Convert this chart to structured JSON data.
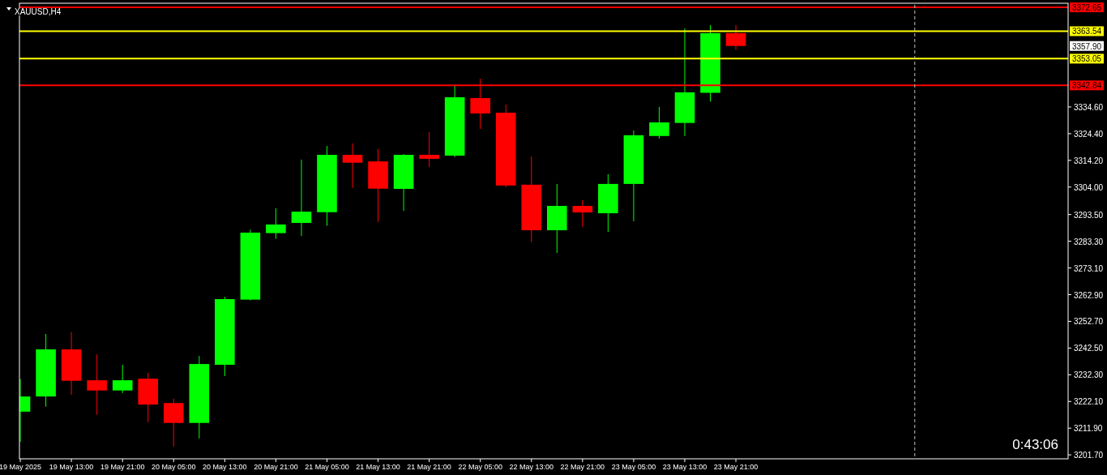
{
  "chart_data": {
    "type": "candlestick",
    "title": "XAUUSD,H4",
    "x": [
      "2025-05-19T05:00",
      "2025-05-19T09:00",
      "2025-05-19T13:00",
      "2025-05-19T17:00",
      "2025-05-19T21:00",
      "2025-05-20T01:00",
      "2025-05-20T05:00",
      "2025-05-20T09:00",
      "2025-05-20T13:00",
      "2025-05-20T17:00",
      "2025-05-20T21:00",
      "2025-05-21T01:00",
      "2025-05-21T05:00",
      "2025-05-21T09:00",
      "2025-05-21T13:00",
      "2025-05-21T17:00",
      "2025-05-21T21:00",
      "2025-05-22T01:00",
      "2025-05-22T05:00",
      "2025-05-22T09:00",
      "2025-05-22T13:00",
      "2025-05-22T17:00",
      "2025-05-22T21:00",
      "2025-05-23T01:00",
      "2025-05-23T05:00",
      "2025-05-23T09:00",
      "2025-05-23T13:00",
      "2025-05-23T17:00",
      "2025-05-23T21:00"
    ],
    "ohlc": [
      [
        3218.2,
        3230.6,
        3206.7,
        3224.0
      ],
      [
        3224.0,
        3247.9,
        3220.1,
        3242.0
      ],
      [
        3242.0,
        3248.6,
        3224.6,
        3230.0
      ],
      [
        3230.2,
        3240.1,
        3217.0,
        3226.3
      ],
      [
        3226.3,
        3236.1,
        3225.3,
        3230.2
      ],
      [
        3230.8,
        3233.0,
        3214.2,
        3220.9
      ],
      [
        3221.5,
        3223.1,
        3204.9,
        3213.9
      ],
      [
        3213.9,
        3239.5,
        3208.0,
        3236.4
      ],
      [
        3236.1,
        3262.1,
        3231.8,
        3261.2
      ],
      [
        3261.0,
        3287.7,
        3260.7,
        3286.6
      ],
      [
        3286.4,
        3295.9,
        3284.2,
        3289.7
      ],
      [
        3290.3,
        3314.5,
        3285.3,
        3294.6
      ],
      [
        3294.4,
        3319.7,
        3289.2,
        3316.3
      ],
      [
        3316.3,
        3320.7,
        3303.7,
        3313.3
      ],
      [
        3313.8,
        3318.5,
        3290.7,
        3303.4
      ],
      [
        3303.3,
        3316.6,
        3294.9,
        3316.3
      ],
      [
        3316.3,
        3325.0,
        3311.7,
        3314.8
      ],
      [
        3316.0,
        3343.0,
        3315.4,
        3338.3
      ],
      [
        3338.0,
        3345.4,
        3326.2,
        3332.1
      ],
      [
        3332.4,
        3335.5,
        3303.9,
        3304.6
      ],
      [
        3304.9,
        3315.7,
        3282.9,
        3287.5
      ],
      [
        3287.5,
        3305.2,
        3278.8,
        3296.8
      ],
      [
        3296.8,
        3299.0,
        3288.8,
        3294.3
      ],
      [
        3294.0,
        3308.9,
        3286.9,
        3305.2
      ],
      [
        3305.2,
        3325.6,
        3290.9,
        3323.8
      ],
      [
        3323.5,
        3334.6,
        3322.5,
        3328.7
      ],
      [
        3328.5,
        3364.6,
        3323.5,
        3340.2
      ],
      [
        3340.0,
        3365.9,
        3336.6,
        3362.8
      ],
      [
        3362.8,
        3365.9,
        3356.4,
        3357.9
      ]
    ],
    "colors": [
      "#00ff00",
      "#00ff00",
      "#ff0000",
      "#ff0000",
      "#00ff00",
      "#ff0000",
      "#ff0000",
      "#00ff00",
      "#00ff00",
      "#00ff00",
      "#00ff00",
      "#00ff00",
      "#00ff00",
      "#ff0000",
      "#ff0000",
      "#00ff00",
      "#ff0000",
      "#00ff00",
      "#ff0000",
      "#ff0000",
      "#ff0000",
      "#00ff00",
      "#ff0000",
      "#00ff00",
      "#00ff00",
      "#00ff00",
      "#00ff00",
      "#00ff00",
      "#ff0000"
    ],
    "xlim": [
      "2025-05-19T04:52",
      "2025-05-26T01:00"
    ],
    "ylim": [
      3200.2,
      3373.6
    ],
    "yticks": [
      {
        "value": 3201.7,
        "label": "3201.70"
      },
      {
        "value": 3211.9,
        "label": "3211.90"
      },
      {
        "value": 3222.1,
        "label": "3222.10"
      },
      {
        "value": 3232.3,
        "label": "3232.30"
      },
      {
        "value": 3242.5,
        "label": "3242.50"
      },
      {
        "value": 3252.7,
        "label": "3252.70"
      },
      {
        "value": 3262.9,
        "label": "3262.90"
      },
      {
        "value": 3273.1,
        "label": "3273.10"
      },
      {
        "value": 3283.3,
        "label": "3283.30"
      },
      {
        "value": 3293.5,
        "label": "3293.50"
      },
      {
        "value": 3304,
        "label": "3304.00"
      },
      {
        "value": 3314.2,
        "label": "3314.20"
      },
      {
        "value": 3324.4,
        "label": "3324.40"
      },
      {
        "value": 3334.6,
        "label": "3334.60"
      }
    ],
    "xticks": [
      {
        "value": "2025-05-19T05:00",
        "label": "19 May 2025"
      },
      {
        "value": "2025-05-19T13:00",
        "label": "19 May 13:00"
      },
      {
        "value": "2025-05-19T21:00",
        "label": "19 May 21:00"
      },
      {
        "value": "2025-05-20T05:00",
        "label": "20 May 05:00"
      },
      {
        "value": "2025-05-20T13:00",
        "label": "20 May 13:00"
      },
      {
        "value": "2025-05-20T21:00",
        "label": "20 May 21:00"
      },
      {
        "value": "2025-05-21T05:00",
        "label": "21 May 05:00"
      },
      {
        "value": "2025-05-21T13:00",
        "label": "21 May 13:00"
      },
      {
        "value": "2025-05-21T21:00",
        "label": "21 May 21:00"
      },
      {
        "value": "2025-05-22T05:00",
        "label": "22 May 05:00"
      },
      {
        "value": "2025-05-22T13:00",
        "label": "22 May 13:00"
      },
      {
        "value": "2025-05-22T21:00",
        "label": "22 May 21:00"
      },
      {
        "value": "2025-05-23T05:00",
        "label": "23 May 05:00"
      },
      {
        "value": "2025-05-23T13:00",
        "label": "23 May 13:00"
      },
      {
        "value": "2025-05-23T21:00",
        "label": "23 May 21:00"
      }
    ],
    "ref_lines": [
      {
        "axis": "y",
        "value": 3372.65,
        "label": "3372.65",
        "color": "#ff0000"
      },
      {
        "axis": "y",
        "value": 3363.54,
        "label": "3363.54",
        "color": "#ffff00"
      },
      {
        "axis": "y",
        "value": 3353.05,
        "label": "3353.05",
        "color": "#ffff00"
      },
      {
        "axis": "y",
        "value": 3342.84,
        "label": "3342.84",
        "color": "#ff0000"
      },
      {
        "axis": "x",
        "value": "2025-05-25T01:00",
        "color": "#c0c0c0",
        "line_style": "dashed"
      }
    ],
    "annotations": [
      "3357.90",
      "0:43:06"
    ],
    "grid": false
  }
}
